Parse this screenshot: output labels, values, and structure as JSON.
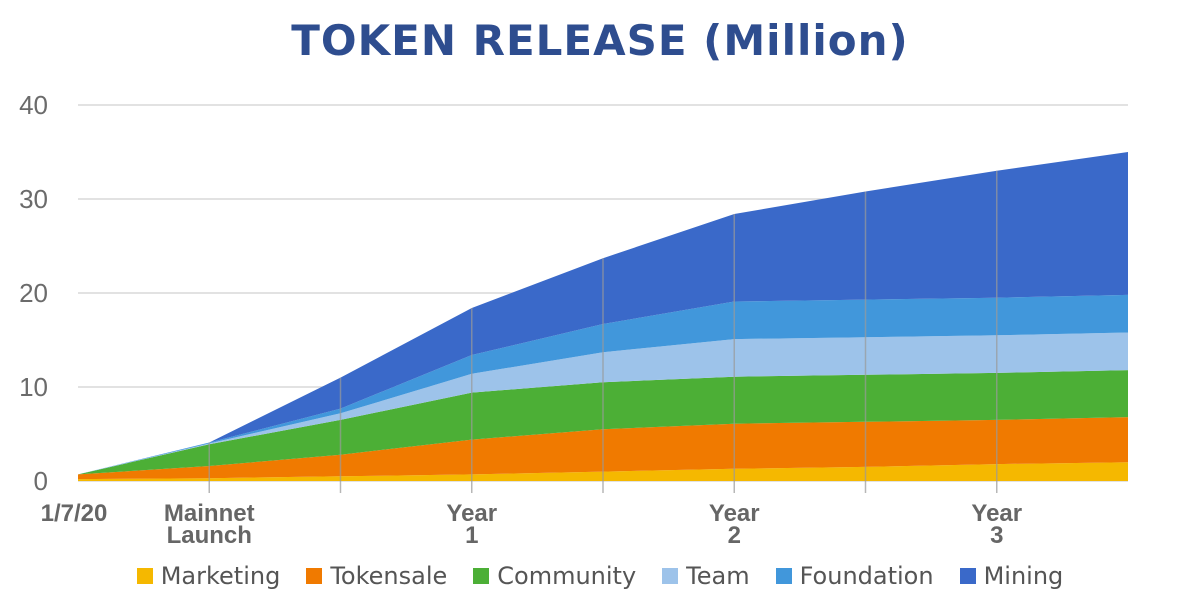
{
  "chart_data": {
    "type": "area",
    "stacked": true,
    "title": "TOKEN RELEASE (Million)",
    "x": [
      "1/7/20",
      "Mainnet Launch",
      "",
      "Year 1",
      "",
      "Year 2",
      "",
      "Year 3",
      ""
    ],
    "ylim": [
      0,
      40
    ],
    "yticks": [
      0,
      10,
      20,
      30,
      40
    ],
    "grid": true,
    "legend": "bottom",
    "series": [
      {
        "name": "Marketing",
        "color": "#f5b800",
        "values": [
          0.2,
          0.3,
          0.5,
          0.7,
          1.0,
          1.3,
          1.5,
          1.8,
          2.0
        ]
      },
      {
        "name": "Tokensale",
        "color": "#f07a00",
        "values": [
          0.5,
          1.3,
          2.3,
          3.7,
          4.5,
          4.8,
          4.8,
          4.7,
          4.8
        ]
      },
      {
        "name": "Community",
        "color": "#4caf36",
        "values": [
          0.0,
          2.3,
          3.7,
          5.0,
          5.0,
          5.0,
          5.0,
          5.0,
          5.0
        ]
      },
      {
        "name": "Team",
        "color": "#9dc3ea",
        "values": [
          0.0,
          0.1,
          0.7,
          2.0,
          3.2,
          4.0,
          4.0,
          4.0,
          4.0
        ]
      },
      {
        "name": "Foundation",
        "color": "#4197db",
        "values": [
          0.0,
          0.1,
          0.5,
          2.0,
          3.0,
          4.0,
          4.0,
          4.0,
          4.0
        ]
      },
      {
        "name": "Mining",
        "color": "#3a69c9",
        "values": [
          0.0,
          0.0,
          3.3,
          5.0,
          7.0,
          9.3,
          11.5,
          13.5,
          15.2
        ]
      }
    ]
  }
}
